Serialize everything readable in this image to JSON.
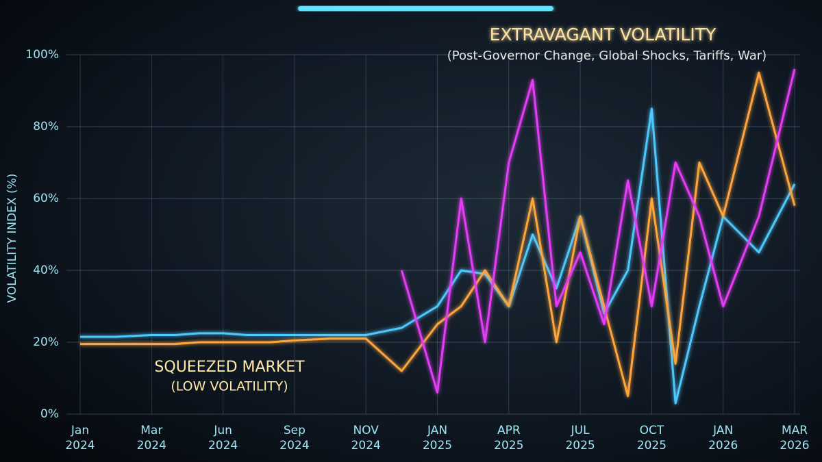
{
  "chart_data": {
    "type": "line",
    "title": "EXTRAVAGANT VOLATILITY",
    "subtitle": "(Post-Governor Change, Global Shocks, Tariffs, War)",
    "annotations": [
      "SQUEEZED MARKET",
      "(LOW VOLATILITY)"
    ],
    "y_label": "VOLATILITY INDEX (%)",
    "x": [
      "2024-01",
      "2024-02",
      "2024-03",
      "2024-04",
      "2024-05",
      "2024-06",
      "2024-07",
      "2024-08",
      "2024-09",
      "2024-10",
      "2024-11",
      "2024-12",
      "2025-01",
      "2025-02",
      "2025-03",
      "2025-04",
      "2025-05",
      "2025-06",
      "2025-07",
      "2025-08",
      "2025-09",
      "2025-10",
      "2025-11",
      "2025-12",
      "2026-01",
      "2026-02",
      "2026-03"
    ],
    "series": [
      {
        "color": "#4fc8ff",
        "values": [
          21.5,
          21.5,
          22,
          22,
          22.5,
          22.5,
          22,
          22,
          22,
          22,
          22,
          24,
          30,
          40,
          39,
          30,
          50,
          35,
          55,
          28,
          40,
          85,
          3,
          30,
          55,
          45,
          64
        ]
      },
      {
        "color": "#ffa53c",
        "values": [
          19.5,
          19.5,
          19.5,
          19.5,
          20,
          20,
          20,
          20,
          20.5,
          21,
          21,
          12,
          25,
          30,
          40,
          30,
          60,
          20,
          55,
          30,
          5,
          60,
          14,
          70,
          55,
          95,
          58
        ]
      },
      {
        "color": "#e43cf6",
        "values": [
          null,
          null,
          null,
          null,
          null,
          null,
          null,
          null,
          null,
          null,
          null,
          40,
          6,
          60,
          20,
          70,
          93,
          30,
          45,
          25,
          65,
          30,
          70,
          55,
          30,
          55,
          96
        ]
      }
    ],
    "ylim": [
      0,
      100
    ],
    "yticks": [
      {
        "value": 0,
        "label": "0%"
      },
      {
        "value": 20,
        "label": "20%"
      },
      {
        "value": 40,
        "label": "40%"
      },
      {
        "value": 60,
        "label": "60%"
      },
      {
        "value": 80,
        "label": "80%"
      },
      {
        "value": 100,
        "label": "100%"
      }
    ],
    "xlim": [
      "2024-01",
      "2026-03"
    ],
    "xticks": [
      {
        "value": "2024-01",
        "label": [
          "Jan",
          "2024"
        ]
      },
      {
        "value": "2024-03",
        "label": [
          "Mar",
          "2024"
        ]
      },
      {
        "value": "2024-06",
        "label": [
          "Jun",
          "2024"
        ]
      },
      {
        "value": "2024-09",
        "label": [
          "Sep",
          "2024"
        ]
      },
      {
        "value": "2024-11",
        "label": [
          "NOV",
          "2024"
        ]
      },
      {
        "value": "2025-01",
        "label": [
          "JAN",
          "2025"
        ]
      },
      {
        "value": "2025-04",
        "label": [
          "APR",
          "2025"
        ]
      },
      {
        "value": "2025-07",
        "label": [
          "JUL",
          "2025"
        ]
      },
      {
        "value": "2025-10",
        "label": [
          "OCT",
          "2025"
        ]
      },
      {
        "value": "2026-01",
        "label": [
          "JAN",
          "2026"
        ]
      },
      {
        "value": "2026-03",
        "label": [
          "MAR",
          "2026"
        ]
      }
    ],
    "grid": true
  }
}
